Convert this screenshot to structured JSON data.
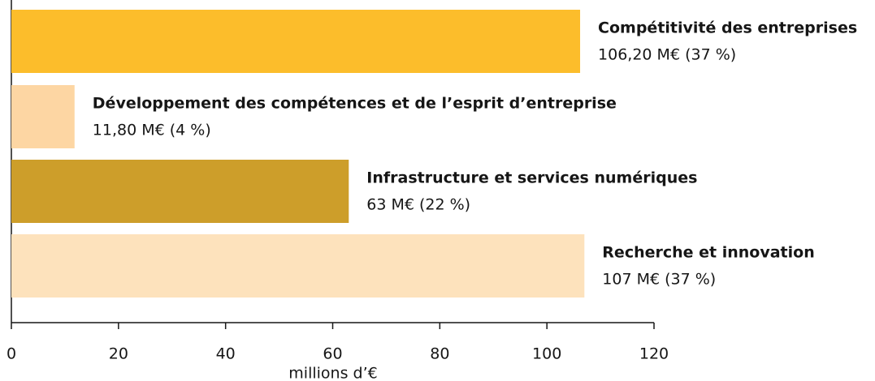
{
  "chart_data": {
    "type": "bar",
    "orientation": "horizontal",
    "categories": [
      "Compétitivité des entreprises",
      "Développement des compétences et de l’esprit d’entreprise",
      "Infrastructure et services numériques",
      "Recherche et innovation"
    ],
    "values": [
      106.2,
      11.8,
      63,
      107
    ],
    "value_labels": [
      "106,20 M€ (37 %)",
      "11,80 M€ (4 %)",
      "63 M€ (22 %)",
      "107 M€ (37 %)"
    ],
    "colors": [
      "#fcbd2b",
      "#fdd6a3",
      "#cd9e2a",
      "#fde2bc"
    ],
    "x_label": "millions d’€",
    "xlim": [
      0,
      120
    ],
    "xticks": [
      0,
      20,
      40,
      60,
      80,
      100,
      120
    ]
  }
}
